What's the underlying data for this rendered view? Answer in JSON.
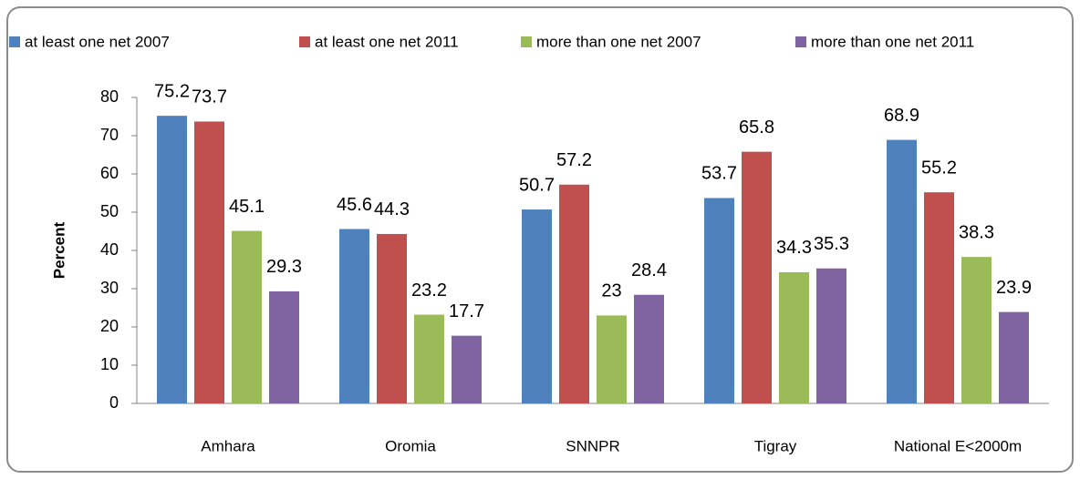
{
  "chart_data": {
    "type": "bar",
    "y_label": "Percent",
    "categories": [
      "Amhara",
      "Oromia",
      "SNNPR",
      "Tigray",
      "National E<2000m"
    ],
    "series": [
      {
        "name": "at least one net 2007",
        "color": "#4f81bd",
        "values": [
          75.2,
          45.6,
          50.7,
          53.7,
          68.9
        ]
      },
      {
        "name": "at least one net 2011",
        "color": "#c0504d",
        "values": [
          73.7,
          44.3,
          57.2,
          65.8,
          55.2
        ]
      },
      {
        "name": "more than one net 2007",
        "color": "#9bbb59",
        "values": [
          45.1,
          23.2,
          23,
          34.3,
          38.3
        ]
      },
      {
        "name": "more than one net 2011",
        "color": "#8064a2",
        "values": [
          29.3,
          17.7,
          28.4,
          35.3,
          23.9
        ]
      }
    ],
    "ylim": [
      0,
      80
    ],
    "yticks": [
      0,
      10,
      20,
      30,
      40,
      50,
      60,
      70,
      80
    ],
    "legend": "top"
  }
}
